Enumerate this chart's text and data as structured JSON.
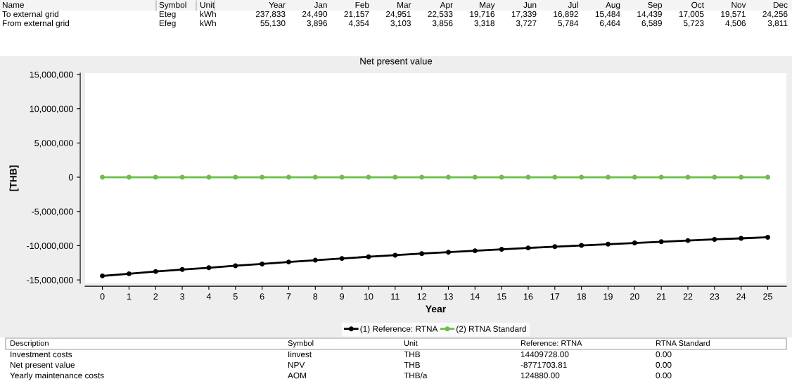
{
  "chart_data": {
    "type": "line",
    "title": "Net present value",
    "xlabel": "Year",
    "ylabel": "[THB]",
    "x": [
      0,
      1,
      2,
      3,
      4,
      5,
      6,
      7,
      8,
      9,
      10,
      11,
      12,
      13,
      14,
      15,
      16,
      17,
      18,
      19,
      20,
      21,
      22,
      23,
      24,
      25
    ],
    "series": [
      {
        "name": "(1) Reference: RTNA",
        "color": "#000000",
        "values": [
          -14410000,
          -14100000,
          -13770000,
          -13480000,
          -13220000,
          -12930000,
          -12670000,
          -12380000,
          -12120000,
          -11870000,
          -11620000,
          -11390000,
          -11160000,
          -10950000,
          -10740000,
          -10530000,
          -10330000,
          -10140000,
          -9960000,
          -9780000,
          -9600000,
          -9420000,
          -9250000,
          -9080000,
          -8930000,
          -8770000
        ]
      },
      {
        "name": "(2) RTNA Standard",
        "color": "#6abf4b",
        "values": [
          0,
          0,
          0,
          0,
          0,
          0,
          0,
          0,
          0,
          0,
          0,
          0,
          0,
          0,
          0,
          0,
          0,
          0,
          0,
          0,
          0,
          0,
          0,
          0,
          0,
          0
        ]
      }
    ],
    "marker": "circle",
    "line_style": "solid",
    "grid": false,
    "legend": "bottom",
    "xlim": [
      -0.65,
      25.7
    ],
    "xticks": [
      0,
      1,
      2,
      3,
      4,
      5,
      6,
      7,
      8,
      9,
      10,
      11,
      12,
      13,
      14,
      15,
      16,
      17,
      18,
      19,
      20,
      21,
      22,
      23,
      24,
      25
    ],
    "ylim": [
      -15500000,
      15200000
    ],
    "yticks": [
      {
        "value": -15000000,
        "label": "-15,000,000"
      },
      {
        "value": -10000000,
        "label": "-10,000,000"
      },
      {
        "value": -5000000,
        "label": "-5,000,000"
      },
      {
        "value": 0,
        "label": "0"
      },
      {
        "value": 5000000,
        "label": "5,000,000"
      },
      {
        "value": 10000000,
        "label": "10,000,000"
      },
      {
        "value": 15000000,
        "label": "15,000,000"
      }
    ],
    "annotations": [
      "Name",
      "Symbol",
      "Unit",
      "Year",
      "Jan",
      "Feb",
      "Mar",
      "Apr",
      "May",
      "Jun",
      "Jul",
      "Aug",
      "Sep",
      "Oct",
      "Nov",
      "Dec",
      "To external grid",
      "Eteg",
      "kWh",
      "237,833",
      "24,490",
      "21,157",
      "24,951",
      "22,533",
      "19,716",
      "17,339",
      "16,892",
      "15,484",
      "14,439",
      "17,005",
      "19,571",
      "24,256",
      "From external grid",
      "Efeg",
      "kWh",
      "55,130",
      "3,896",
      "4,354",
      "3,103",
      "3,856",
      "3,318",
      "3,727",
      "5,784",
      "6,464",
      "6,589",
      "5,723",
      "4,506",
      "3,811",
      "Description",
      "Symbol",
      "Unit",
      "Reference: RTNA",
      "RTNA Standard",
      "Investment costs",
      "Iinvest",
      "THB",
      "14409728.00",
      "0.00",
      "Net present value",
      "NPV",
      "THB",
      "-8771703.81",
      "0.00",
      "Yearly maintenance costs",
      "AOM",
      "THB/a",
      "124880.00",
      "0.00"
    ]
  }
}
